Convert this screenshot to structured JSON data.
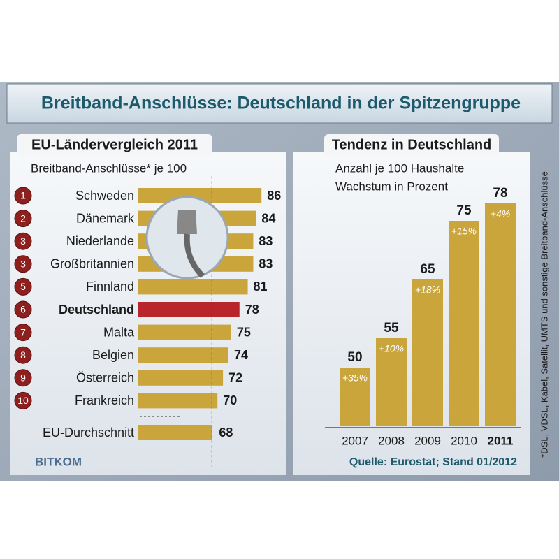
{
  "title": "Breitband-Anschlüsse: Deutschland in der Spitzengruppe",
  "source": "Quelle: Eurostat; Stand 01/2012",
  "footnote": "*DSL, VDSL, Kabel, Satellit, UMTS und sonstige Breitband-Anschlüsse",
  "logo": "BITKOM",
  "chart_data": [
    {
      "type": "hbar",
      "title": "EU-Ländervergleich 2011",
      "subtitle": "Breitband-Anschlüsse* je 100",
      "ranks": [
        1,
        2,
        3,
        3,
        5,
        6,
        7,
        8,
        9,
        10
      ],
      "categories": [
        "Schweden",
        "Dänemark",
        "Niederlande",
        "Großbritannien",
        "Finnland",
        "Deutschland",
        "Malta",
        "Belgien",
        "Österreich",
        "Frankreich"
      ],
      "values": [
        86,
        84,
        83,
        83,
        81,
        78,
        75,
        74,
        72,
        70
      ],
      "reference_label": "EU-Durchschnitt",
      "reference_value": 68,
      "xlim": [
        41,
        90
      ],
      "color": "#c9a53c",
      "highlight_index": 5,
      "highlight_color": "#b8262c"
    },
    {
      "type": "bar",
      "title": "Tendenz in Deutschland",
      "subtitle": "Anzahl je 100 Haushalte",
      "subtitle2": "Wachstum in Prozent",
      "categories": [
        "2007",
        "2008",
        "2009",
        "2010",
        "2011"
      ],
      "values": [
        50,
        55,
        65,
        75,
        78
      ],
      "growth": [
        35,
        10,
        18,
        15,
        4
      ],
      "growth_labels": [
        "+35%",
        "+10%",
        "+18%",
        "+15%",
        "+4%"
      ],
      "ylim": [
        40,
        80
      ],
      "color": "#c9a53c",
      "highlight_index": 4
    }
  ]
}
